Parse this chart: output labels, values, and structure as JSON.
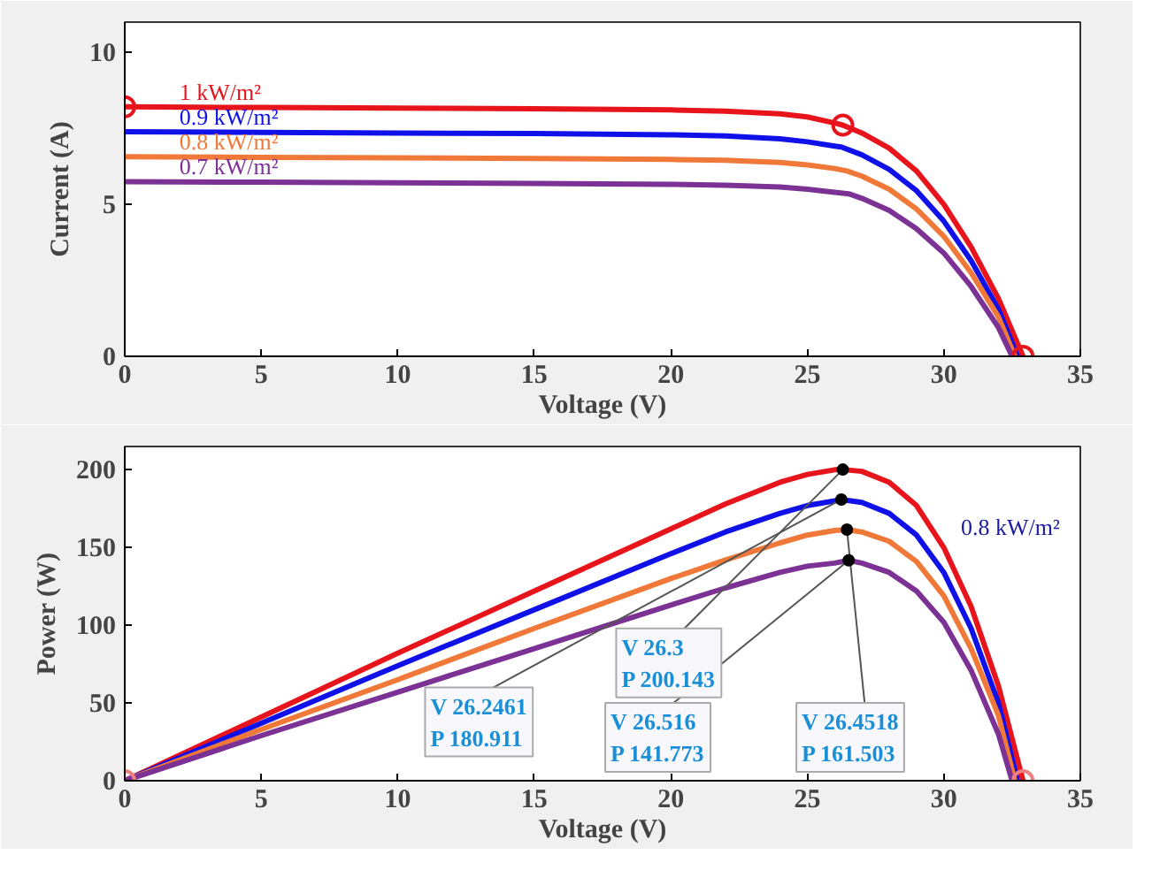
{
  "chart_data": [
    {
      "type": "line",
      "xlabel": "Voltage (V)",
      "ylabel": "Current (A)",
      "xlim": [
        0,
        35
      ],
      "ylim": [
        0,
        11
      ],
      "xticks": [
        0,
        5,
        10,
        15,
        20,
        25,
        30,
        35
      ],
      "yticks": [
        0,
        5,
        10
      ],
      "grid": false,
      "line_style": "solid",
      "series": [
        {
          "name": "1 kW/m²",
          "color": "#e8141b",
          "x": [
            0,
            5,
            10,
            15,
            20,
            22,
            24,
            25,
            26,
            26.3,
            27,
            28,
            29,
            30,
            31,
            32,
            32.9
          ],
          "values": [
            8.21,
            8.19,
            8.17,
            8.15,
            8.11,
            8.07,
            7.98,
            7.88,
            7.68,
            7.61,
            7.35,
            6.85,
            6.1,
            5.0,
            3.6,
            1.9,
            0
          ]
        },
        {
          "name": "0.9 kW/m²",
          "color": "#1010e8",
          "x": [
            0,
            5,
            10,
            15,
            20,
            22,
            24,
            25,
            26,
            26.2461,
            27,
            28,
            29,
            30,
            31,
            32,
            32.7
          ],
          "values": [
            7.39,
            7.37,
            7.35,
            7.33,
            7.29,
            7.25,
            7.16,
            7.06,
            6.92,
            6.89,
            6.63,
            6.15,
            5.45,
            4.45,
            3.15,
            1.55,
            0
          ]
        },
        {
          "name": "0.8 kW/m²",
          "color": "#f07838",
          "x": [
            0,
            5,
            10,
            15,
            20,
            22,
            24,
            25,
            26,
            26.4518,
            27,
            28,
            29,
            30,
            31,
            32,
            32.6
          ],
          "values": [
            6.57,
            6.55,
            6.53,
            6.51,
            6.48,
            6.45,
            6.38,
            6.3,
            6.18,
            6.1,
            5.93,
            5.5,
            4.85,
            3.95,
            2.75,
            1.3,
            0
          ]
        },
        {
          "name": "0.7 kW/m²",
          "color": "#7b3294",
          "x": [
            0,
            5,
            10,
            15,
            20,
            22,
            24,
            25,
            26,
            26.516,
            27,
            28,
            29,
            30,
            31,
            32,
            32.5
          ],
          "values": [
            5.75,
            5.73,
            5.71,
            5.69,
            5.66,
            5.63,
            5.57,
            5.5,
            5.4,
            5.35,
            5.2,
            4.8,
            4.2,
            3.4,
            2.3,
            0.95,
            0
          ]
        },
        {
          "type": "scatter",
          "marker": "circle",
          "color": "#e8141b",
          "x": [
            0,
            26.3,
            32.9
          ],
          "values": [
            8.21,
            7.61,
            0
          ]
        }
      ]
    },
    {
      "type": "line",
      "xlabel": "Voltage (V)",
      "ylabel": "Power (W)",
      "xlim": [
        0,
        35
      ],
      "ylim": [
        0,
        215
      ],
      "xticks": [
        0,
        5,
        10,
        15,
        20,
        25,
        30,
        35
      ],
      "yticks": [
        0,
        50,
        100,
        150,
        200
      ],
      "grid": false,
      "line_style": "solid",
      "series": [
        {
          "color": "#e8141b",
          "x": [
            0,
            5,
            10,
            15,
            20,
            22,
            24,
            25,
            26,
            26.3,
            27,
            28,
            29,
            30,
            31,
            32,
            32.9
          ],
          "values": [
            0,
            41,
            82,
            122,
            162,
            178,
            192,
            197,
            200,
            200.143,
            199,
            192,
            177,
            150,
            112,
            61,
            0
          ]
        },
        {
          "color": "#1010e8",
          "x": [
            0,
            5,
            10,
            15,
            20,
            22,
            24,
            25,
            26,
            26.2461,
            27,
            28,
            29,
            30,
            31,
            32,
            32.7
          ],
          "values": [
            0,
            37,
            74,
            110,
            146,
            160,
            172,
            177,
            180,
            180.911,
            179,
            172,
            158,
            134,
            98,
            50,
            0
          ]
        },
        {
          "color": "#f07838",
          "x": [
            0,
            5,
            10,
            15,
            20,
            22,
            24,
            25,
            26,
            26.4518,
            27,
            28,
            29,
            30,
            31,
            32,
            32.6
          ],
          "values": [
            0,
            33,
            65,
            98,
            130,
            142,
            153,
            158,
            161,
            161.503,
            160,
            154,
            141,
            119,
            85,
            42,
            0
          ]
        },
        {
          "color": "#7b3294",
          "x": [
            0,
            5,
            10,
            15,
            20,
            22,
            24,
            25,
            26,
            26.516,
            27,
            28,
            29,
            30,
            31,
            32,
            32.5
          ],
          "values": [
            0,
            29,
            57,
            85,
            113,
            124,
            134,
            138,
            140,
            141.773,
            140,
            134,
            122,
            102,
            71,
            30,
            0
          ]
        },
        {
          "type": "scatter",
          "marker": "circle",
          "color": "#f08080",
          "x": [
            0,
            32.9
          ],
          "values": [
            0,
            0
          ]
        }
      ],
      "annotations": [
        {
          "text": "V 26.3\nP 200.143",
          "x": 26.3,
          "y": 200.143
        },
        {
          "text": "V 26.4518\nP 161.503",
          "x": 26.4518,
          "y": 161.503
        },
        {
          "text": "V 26.2461\nP 180.911",
          "x": 26.2461,
          "y": 180.911
        },
        {
          "text": "V 26.516\nP 141.773",
          "x": 26.516,
          "y": 141.773
        },
        "0.8 kW/m²"
      ]
    }
  ]
}
